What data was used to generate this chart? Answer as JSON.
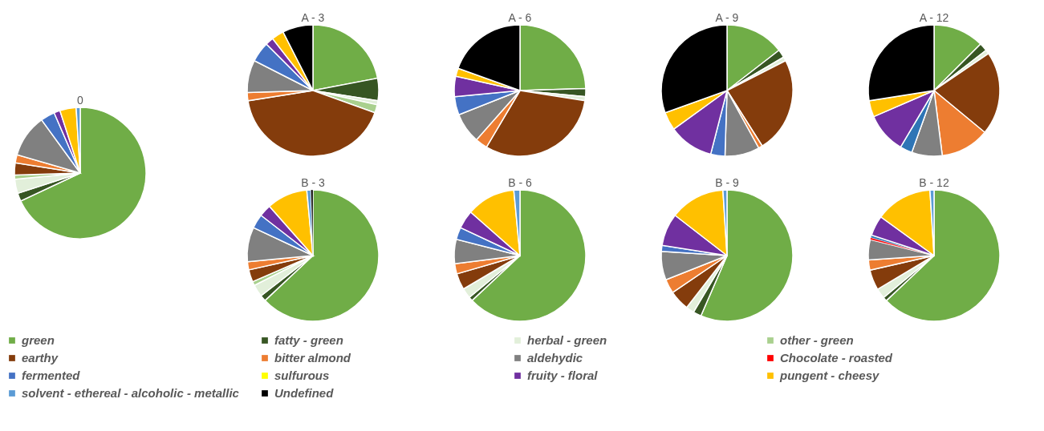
{
  "chart_data": [
    {
      "type": "pie",
      "title": "0",
      "legend": "bottom",
      "categories": [
        "green",
        "fatty - green",
        "herbal - green",
        "other - green",
        "earthy",
        "bitter almond",
        "aldehydic",
        "Chocolate - roasted",
        "fermented",
        "sulfurous",
        "fruity - floral",
        "pungent - cheesy",
        "solvent - ethereal - alcoholic - metallic",
        "Undefined"
      ],
      "values": [
        68,
        2,
        3.5,
        1,
        3,
        2,
        10.5,
        0,
        3.5,
        0,
        1.5,
        4,
        1,
        0
      ],
      "colors": [
        "#70ad47",
        "#375623",
        "#e2efda",
        "#a9d08e",
        "#843c0c",
        "#ed7d31",
        "#808080",
        "#ff0000",
        "#4472c4",
        "#ffff00",
        "#7030a0",
        "#ffc000",
        "#5b9bd5",
        "#000000"
      ]
    },
    {
      "type": "pie",
      "title": "A - 3",
      "values": [
        22,
        5.5,
        1,
        2,
        42,
        2,
        8,
        0,
        5,
        0,
        2,
        3,
        0,
        7.5
      ],
      "colors": [
        "#70ad47",
        "#375623",
        "#e2efda",
        "#a9d08e",
        "#843c0c",
        "#ed7d31",
        "#808080",
        "#ff0000",
        "#4472c4",
        "#ffff00",
        "#7030a0",
        "#ffc000",
        "#5b9bd5",
        "#000000"
      ]
    },
    {
      "type": "pie",
      "title": "A - 6",
      "values": [
        24.5,
        2,
        1,
        0,
        31,
        3,
        7.5,
        0,
        4.5,
        0,
        5,
        2,
        0,
        19.5
      ],
      "colors": [
        "#70ad47",
        "#375623",
        "#e2efda",
        "#a9d08e",
        "#843c0c",
        "#ed7d31",
        "#808080",
        "#ff0000",
        "#4472c4",
        "#ffff00",
        "#7030a0",
        "#ffc000",
        "#5b9bd5",
        "#000000"
      ]
    },
    {
      "type": "pie",
      "title": "A - 9",
      "values": [
        14.5,
        2,
        1,
        0,
        23.5,
        1,
        8.5,
        0,
        3.5,
        0,
        11,
        4.5,
        0,
        30.5
      ],
      "colors": [
        "#70ad47",
        "#375623",
        "#e2efda",
        "#a9d08e",
        "#843c0c",
        "#ed7d31",
        "#808080",
        "#ff0000",
        "#4472c4",
        "#ffff00",
        "#7030a0",
        "#ffc000",
        "#5b9bd5",
        "#000000"
      ]
    },
    {
      "type": "pie",
      "title": "A - 12",
      "values": [
        12.5,
        2,
        1,
        0,
        20.5,
        12,
        7.5,
        0,
        3,
        0,
        10,
        4,
        0,
        27.5
      ],
      "colors": [
        "#70ad47",
        "#375623",
        "#e2efda",
        "#a9d08e",
        "#843c0c",
        "#ed7d31",
        "#808080",
        "#ff0000",
        "#2e75b6",
        "#ffff00",
        "#7030a0",
        "#ffc000",
        "#5b9bd5",
        "#000000"
      ]
    },
    {
      "type": "pie",
      "title": "B - 3",
      "values": [
        63,
        1.5,
        3,
        1,
        3,
        2,
        8.5,
        0,
        3.5,
        0,
        3,
        10,
        1,
        0.5
      ],
      "colors": [
        "#70ad47",
        "#375623",
        "#e2efda",
        "#a9d08e",
        "#843c0c",
        "#ed7d31",
        "#808080",
        "#ff0000",
        "#4472c4",
        "#ffff00",
        "#7030a0",
        "#ffc000",
        "#5b9bd5",
        "#000000"
      ]
    },
    {
      "type": "pie",
      "title": "B - 6",
      "values": [
        63,
        1,
        2.5,
        0,
        4,
        2.5,
        6,
        0,
        3,
        0,
        4.5,
        12,
        1.5,
        0
      ],
      "colors": [
        "#70ad47",
        "#375623",
        "#e2efda",
        "#a9d08e",
        "#843c0c",
        "#ed7d31",
        "#808080",
        "#ff0000",
        "#4472c4",
        "#ffff00",
        "#7030a0",
        "#ffc000",
        "#5b9bd5",
        "#000000"
      ]
    },
    {
      "type": "pie",
      "title": "B - 9",
      "values": [
        56.5,
        2,
        2,
        0,
        5,
        3.5,
        7,
        0,
        1.5,
        0,
        8,
        13.5,
        1,
        0
      ],
      "colors": [
        "#70ad47",
        "#375623",
        "#e2efda",
        "#a9d08e",
        "#843c0c",
        "#ed7d31",
        "#808080",
        "#ff0000",
        "#4472c4",
        "#ffff00",
        "#7030a0",
        "#ffc000",
        "#5b9bd5",
        "#000000"
      ]
    },
    {
      "type": "pie",
      "title": "B - 12",
      "values": [
        63,
        1,
        2.5,
        0,
        5,
        2.5,
        5,
        0.5,
        0.6,
        0,
        5,
        14,
        1,
        0
      ],
      "colors": [
        "#70ad47",
        "#375623",
        "#e2efda",
        "#a9d08e",
        "#843c0c",
        "#ed7d31",
        "#808080",
        "#ff0000",
        "#2e75b6",
        "#ffff00",
        "#7030a0",
        "#ffc000",
        "#5b9bd5",
        "#000000"
      ]
    }
  ]
}
